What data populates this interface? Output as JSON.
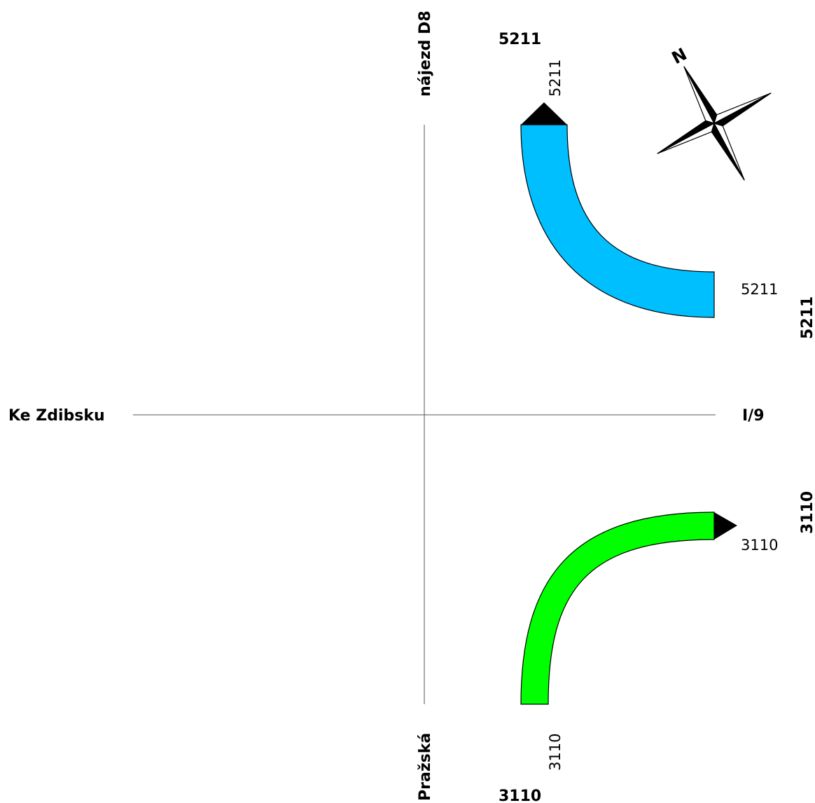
{
  "roads": {
    "north": "nájezd D8",
    "south": "Pražská",
    "west": "Ke Zdibsku",
    "east": "I/9"
  },
  "totals": {
    "north": "5211",
    "east": "5211",
    "south": "3110",
    "east_lower": "3110"
  },
  "flows": [
    {
      "from": "east",
      "to": "north",
      "value": "5211",
      "color": "#00bfff",
      "end_label": "5211",
      "start_label": "5211"
    },
    {
      "from": "south",
      "to": "east",
      "value": "3110",
      "color": "#00ff00",
      "start_label": "3110",
      "end_label": "3110"
    }
  ],
  "compass": {
    "label": "N"
  }
}
